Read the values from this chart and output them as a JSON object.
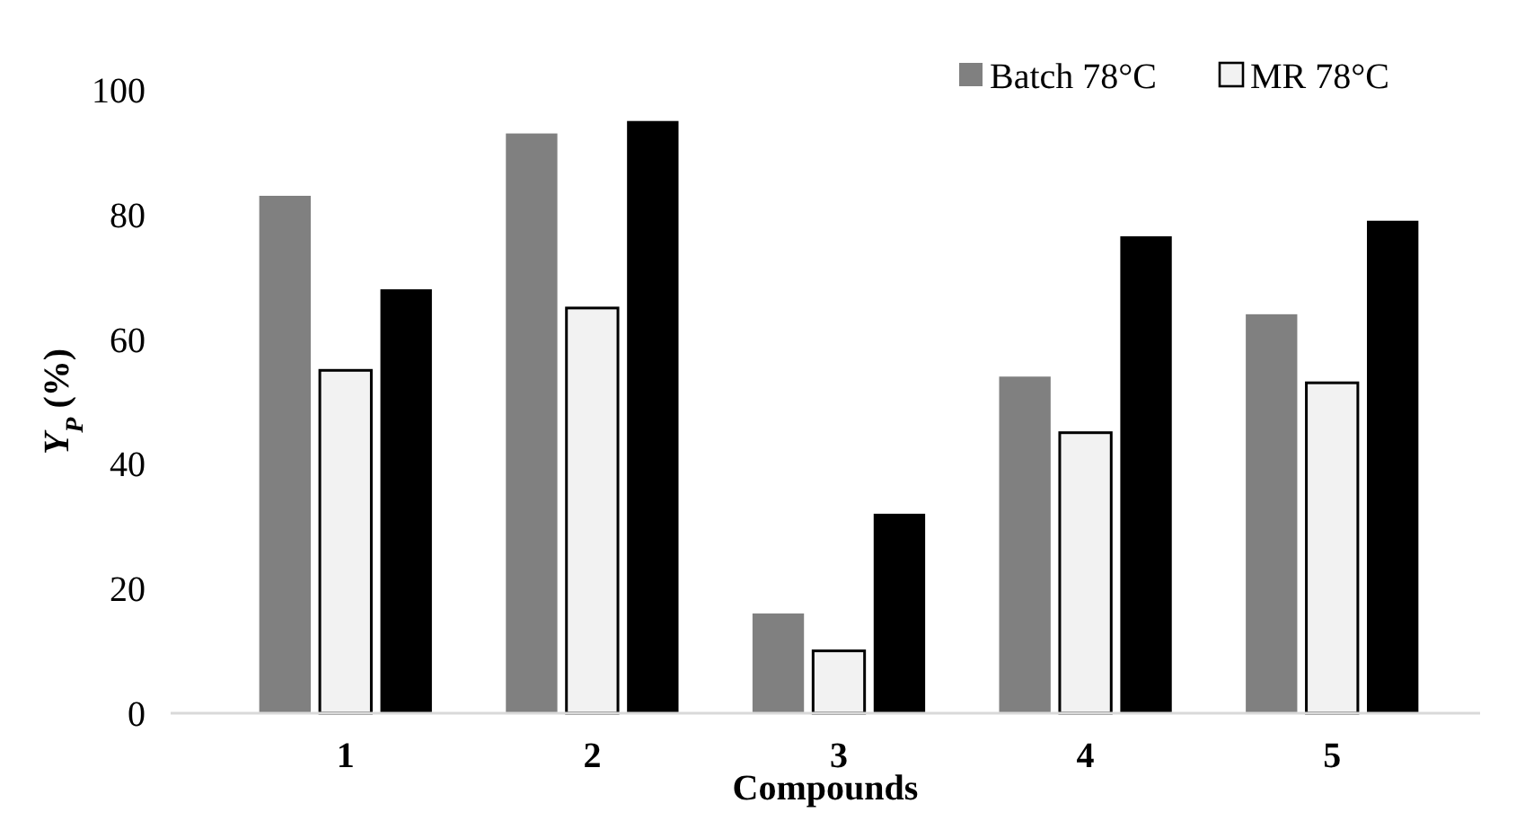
{
  "chart_data": {
    "type": "bar",
    "xlabel": "Compounds",
    "ylabel": "Y$_{P}$ (%)",
    "categories": [
      "1",
      "2",
      "3",
      "4",
      "5"
    ],
    "series": [
      {
        "name": "Batch 78°C",
        "color": "#808080",
        "values": [
          83,
          93,
          16,
          54,
          64
        ]
      },
      {
        "name": "MR 78°C",
        "color": "#f2f2f2",
        "values": [
          55,
          65,
          10,
          45,
          53
        ]
      },
      {
        "color": "#000000",
        "values": [
          68,
          95,
          32,
          76.5,
          79
        ]
      }
    ],
    "ylim": [
      0,
      100
    ],
    "yticks": [
      0,
      20,
      40,
      60,
      80,
      100
    ],
    "legend": "top right"
  }
}
